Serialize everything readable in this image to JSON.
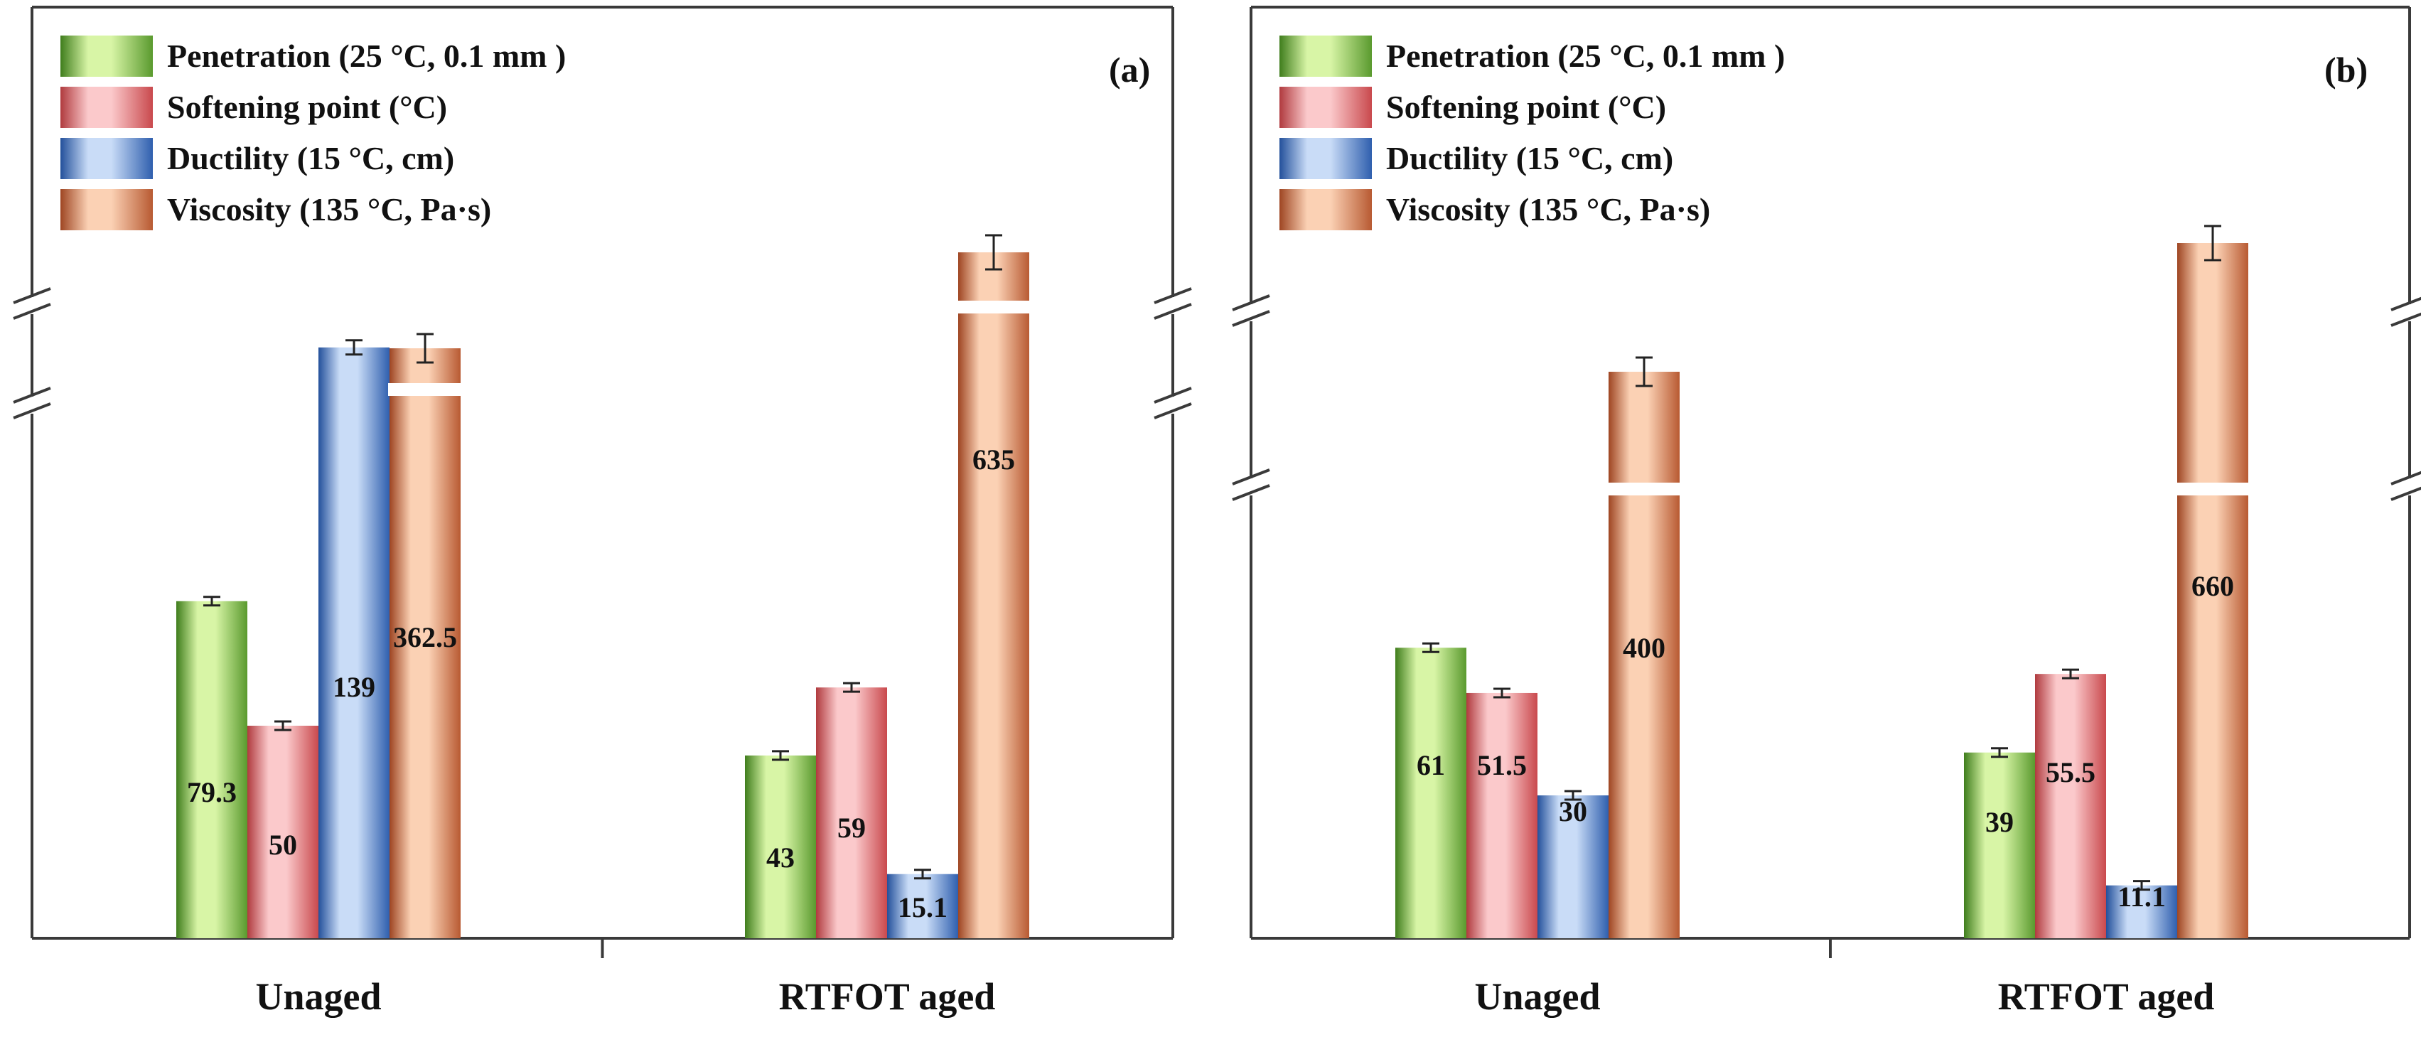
{
  "colors": {
    "penetration": [
      "#5a9a2e",
      "#d8f5a6",
      "#3f7d1c"
    ],
    "softening": [
      "#c9494d",
      "#fbc9cb",
      "#b03a3e"
    ],
    "ductility": [
      "#2f5fae",
      "#c9dcf7",
      "#23509b"
    ],
    "viscosity": [
      "#b85a32",
      "#fbd1b4",
      "#9e4522"
    ],
    "axis": "#3a3a3a"
  },
  "chart_data": [
    {
      "type": "bar",
      "panel_label": "(a)",
      "categories": [
        "Unaged",
        "RTFOT aged"
      ],
      "legend": {
        "placement": "top-left",
        "entries": [
          {
            "key": "penetration",
            "label": "Penetration (25 °C, 0.1 mm )"
          },
          {
            "key": "softening",
            "label": "Softening point (°C)"
          },
          {
            "key": "ductility",
            "label": "Ductility (15 °C, cm)"
          },
          {
            "key": "viscosity",
            "label": "Viscosity (135 °C, Pa·s)"
          }
        ]
      },
      "y_axis": {
        "labels": false,
        "ticks": false,
        "broken": true,
        "break_count": 2
      },
      "series": [
        {
          "key": "penetration",
          "name": "Penetration (25 °C, 0.1 mm )",
          "values": [
            79.3,
            43
          ],
          "labels": [
            "79.3",
            "43"
          ],
          "error": [
            1.0,
            0.8
          ]
        },
        {
          "key": "softening",
          "name": "Softening point (°C)",
          "values": [
            50,
            59
          ],
          "labels": [
            "50",
            "59"
          ],
          "error": [
            0.5,
            0.5
          ]
        },
        {
          "key": "ductility",
          "name": "Ductility (15 °C, cm)",
          "values": [
            139,
            15.1
          ],
          "labels": [
            "139",
            "15.1"
          ],
          "error": [
            2.5,
            0.6
          ]
        },
        {
          "key": "viscosity",
          "name": "Viscosity (135 °C, Pa·s)",
          "values": [
            362.5,
            635
          ],
          "labels": [
            "362.5",
            "635"
          ],
          "error": [
            5,
            6
          ]
        }
      ]
    },
    {
      "type": "bar",
      "panel_label": "(b)",
      "categories": [
        "Unaged",
        "RTFOT aged"
      ],
      "legend": {
        "placement": "top-left",
        "entries": [
          {
            "key": "penetration",
            "label": "Penetration (25 °C, 0.1 mm )"
          },
          {
            "key": "softening",
            "label": "Softening point (°C)"
          },
          {
            "key": "ductility",
            "label": "Ductility (15 °C, cm)"
          },
          {
            "key": "viscosity",
            "label": "Viscosity (135 °C, Pa·s)"
          }
        ]
      },
      "y_axis": {
        "labels": false,
        "ticks": false,
        "broken": true,
        "break_count": 2
      },
      "series": [
        {
          "key": "penetration",
          "name": "Penetration (25 °C, 0.1 mm )",
          "values": [
            61,
            39
          ],
          "labels": [
            "61",
            "39"
          ],
          "error": [
            1.0,
            0.8
          ]
        },
        {
          "key": "softening",
          "name": "Softening point (°C)",
          "values": [
            51.5,
            55.5
          ],
          "labels": [
            "51.5",
            "55.5"
          ],
          "error": [
            0.4,
            0.4
          ]
        },
        {
          "key": "ductility",
          "name": "Ductility (15 °C, cm)",
          "values": [
            30,
            11.1
          ],
          "labels": [
            "30",
            "11.1"
          ],
          "error": [
            0.8,
            0.5
          ]
        },
        {
          "key": "viscosity",
          "name": "Viscosity (135 °C, Pa·s)",
          "values": [
            400,
            660
          ],
          "labels": [
            "400",
            "660"
          ],
          "error": [
            5,
            6
          ]
        }
      ]
    }
  ]
}
